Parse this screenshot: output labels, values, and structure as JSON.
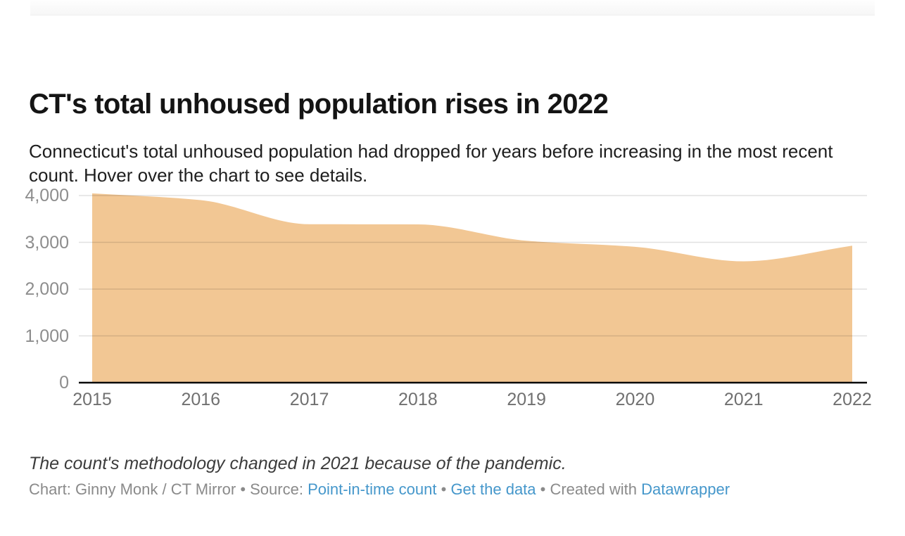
{
  "header": {
    "title": "CT's total unhoused population rises in 2022",
    "description": "Connecticut's total unhoused population had dropped for years before increasing in the most recent count. Hover over the chart to see details."
  },
  "chart_data": {
    "type": "area",
    "title": "CT's total unhoused population rises in 2022",
    "x": [
      2015,
      2016,
      2017,
      2018,
      2019,
      2020,
      2021,
      2022
    ],
    "values": [
      4047,
      3902,
      3387,
      3383,
      3033,
      2904,
      2594,
      2930
    ],
    "series_name": "Total unhoused population",
    "xlabel": "",
    "ylabel": "",
    "ylim": [
      0,
      4000
    ],
    "yticks": [
      0,
      1000,
      2000,
      3000,
      4000
    ],
    "ytick_labels": [
      "0",
      "1,000",
      "2,000",
      "3,000",
      "4,000"
    ],
    "xtick_labels": [
      "2015",
      "2016",
      "2017",
      "2018",
      "2019",
      "2020",
      "2021",
      "2022"
    ],
    "grid": true,
    "legend": false,
    "curve": "monotone",
    "area_color": "#f2c794",
    "gridline_color": "rgba(0,0,0,0.12)",
    "baseline_color": "#0a0a0a"
  },
  "footer": {
    "note": "The count's methodology changed in 2021 because of the pandemic.",
    "byline": {
      "prefix": "Chart: Ginny Monk / CT Mirror • Source: ",
      "source_link": "Point-in-time count",
      "sep1": " • ",
      "data_link": "Get the data",
      "sep2": " • Created with ",
      "tool_link": "Datawrapper"
    }
  }
}
